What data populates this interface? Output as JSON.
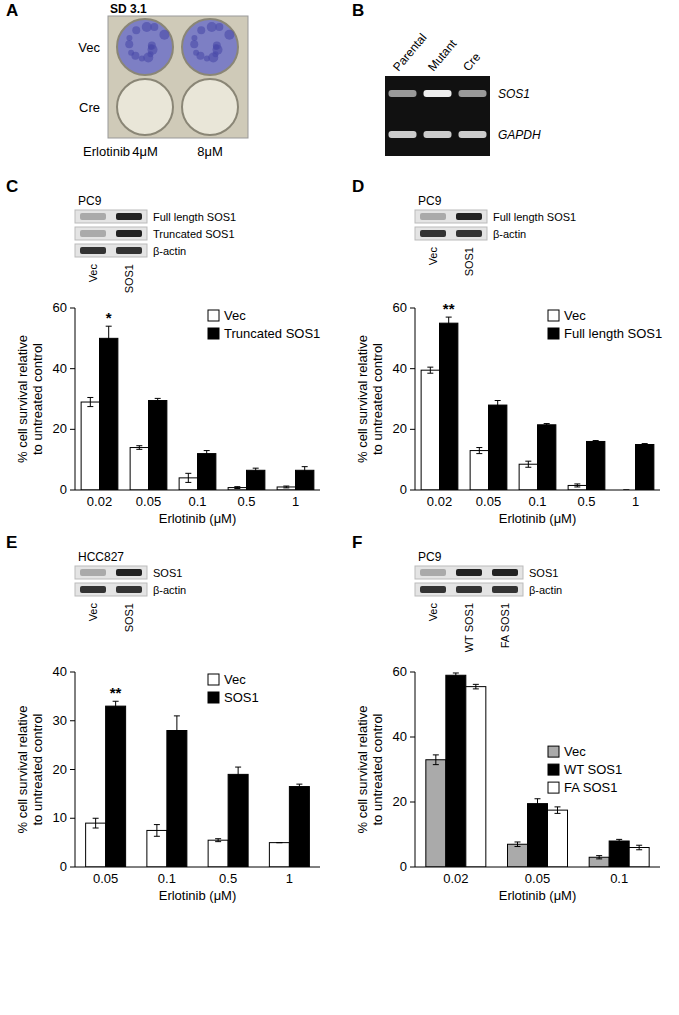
{
  "figure": {
    "panel_labels": [
      "A",
      "B",
      "C",
      "D",
      "E",
      "F"
    ],
    "panel_a": {
      "title": "SD 3.1",
      "rows": [
        "Vec",
        "Cre"
      ],
      "treatment": "Erlotinib",
      "doses": [
        "4μM",
        "8μM"
      ]
    },
    "panel_b": {
      "lanes": [
        "Parental",
        "Mutant",
        "Cre"
      ],
      "bands": [
        "SOS1",
        "GAPDH"
      ]
    },
    "blots": [
      {
        "cell_line": "PC9",
        "bands": [
          "Full length SOS1",
          "Truncated SOS1",
          "β-actin"
        ],
        "lanes": [
          "Vec",
          "SOS1"
        ]
      },
      {
        "cell_line": "PC9",
        "bands": [
          "Full length SOS1",
          "β-actin"
        ],
        "lanes": [
          "Vec",
          "SOS1"
        ]
      },
      {
        "cell_line": "HCC827",
        "bands": [
          "SOS1",
          "β-actin"
        ],
        "lanes": [
          "Vec",
          "SOS1"
        ]
      },
      {
        "cell_line": "PC9",
        "bands": [
          "SOS1",
          "β-actin"
        ],
        "lanes": [
          "Vec",
          "WT SOS1",
          "FA SOS1"
        ]
      }
    ]
  },
  "chart_data": [
    {
      "type": "bar",
      "categories": [
        "0.02",
        "0.05",
        "0.1",
        "0.5",
        "1"
      ],
      "series": [
        {
          "name": "Vec",
          "color": "#ffffff",
          "values": [
            29,
            14,
            4,
            0.8,
            1
          ],
          "errors": [
            1.5,
            0.6,
            1.5,
            0.3,
            0.3
          ]
        },
        {
          "name": "Truncated SOS1",
          "color": "#000000",
          "values": [
            50,
            29.5,
            12,
            6.5,
            6.5
          ],
          "errors": [
            4,
            0.7,
            1,
            0.7,
            1.2
          ]
        }
      ],
      "ylim": [
        0,
        60
      ],
      "yticks": [
        0,
        20,
        40,
        60
      ],
      "ylabel": [
        "% cell survival relative",
        "to untreated control"
      ],
      "xlabel": "Erlotinib (μM)",
      "legend": "upper right",
      "annotations": [
        {
          "text": "*",
          "series": 1,
          "category": 0
        }
      ]
    },
    {
      "type": "bar",
      "categories": [
        "0.02",
        "0.05",
        "0.1",
        "0.5",
        "1"
      ],
      "series": [
        {
          "name": "Vec",
          "color": "#ffffff",
          "values": [
            39.5,
            13,
            8.5,
            1.5,
            0
          ],
          "errors": [
            1,
            1,
            1,
            0.5,
            0
          ]
        },
        {
          "name": "Full length SOS1",
          "color": "#000000",
          "values": [
            55,
            28,
            21.5,
            16,
            15
          ],
          "errors": [
            2,
            1.5,
            0.4,
            0.3,
            0.3
          ]
        }
      ],
      "ylim": [
        0,
        60
      ],
      "yticks": [
        0,
        20,
        40,
        60
      ],
      "ylabel": [
        "% cell survival relative",
        "to untreated control"
      ],
      "xlabel": "Erlotinib (μM)",
      "legend": "upper right",
      "annotations": [
        {
          "text": "**",
          "series": 1,
          "category": 0
        }
      ]
    },
    {
      "type": "bar",
      "categories": [
        "0.05",
        "0.1",
        "0.5",
        "1"
      ],
      "series": [
        {
          "name": "Vec",
          "color": "#ffffff",
          "values": [
            9,
            7.5,
            5.5,
            5
          ],
          "errors": [
            1,
            1.2,
            0.3,
            0
          ]
        },
        {
          "name": "SOS1",
          "color": "#000000",
          "values": [
            33,
            28,
            19,
            16.5
          ],
          "errors": [
            1,
            3,
            1.5,
            0.5
          ]
        }
      ],
      "ylim": [
        0,
        40
      ],
      "yticks": [
        0,
        10,
        20,
        30,
        40
      ],
      "ylabel": [
        "% cell survival relative",
        "to untreated control"
      ],
      "xlabel": "Erlotinib (μM)",
      "legend": "upper right",
      "annotations": [
        {
          "text": "**",
          "series": 1,
          "category": 0
        }
      ]
    },
    {
      "type": "bar",
      "categories": [
        "0.02",
        "0.05",
        "0.1"
      ],
      "series": [
        {
          "name": "Vec",
          "color": "#aaaaaa",
          "values": [
            33,
            7,
            3
          ],
          "errors": [
            1.5,
            0.7,
            0.5
          ]
        },
        {
          "name": "WT SOS1",
          "color": "#000000",
          "values": [
            59,
            19.5,
            8
          ],
          "errors": [
            0.7,
            1.5,
            0.5
          ]
        },
        {
          "name": "FA SOS1",
          "color": "#ffffff",
          "values": [
            55.5,
            17.5,
            6
          ],
          "errors": [
            0.7,
            1,
            0.7
          ]
        }
      ],
      "ylim": [
        0,
        60
      ],
      "yticks": [
        0,
        20,
        40,
        60
      ],
      "ylabel": [
        "% cell survival relative",
        "to untreated control"
      ],
      "xlabel": "Erlotinib (μM)",
      "legend": "right"
    }
  ]
}
